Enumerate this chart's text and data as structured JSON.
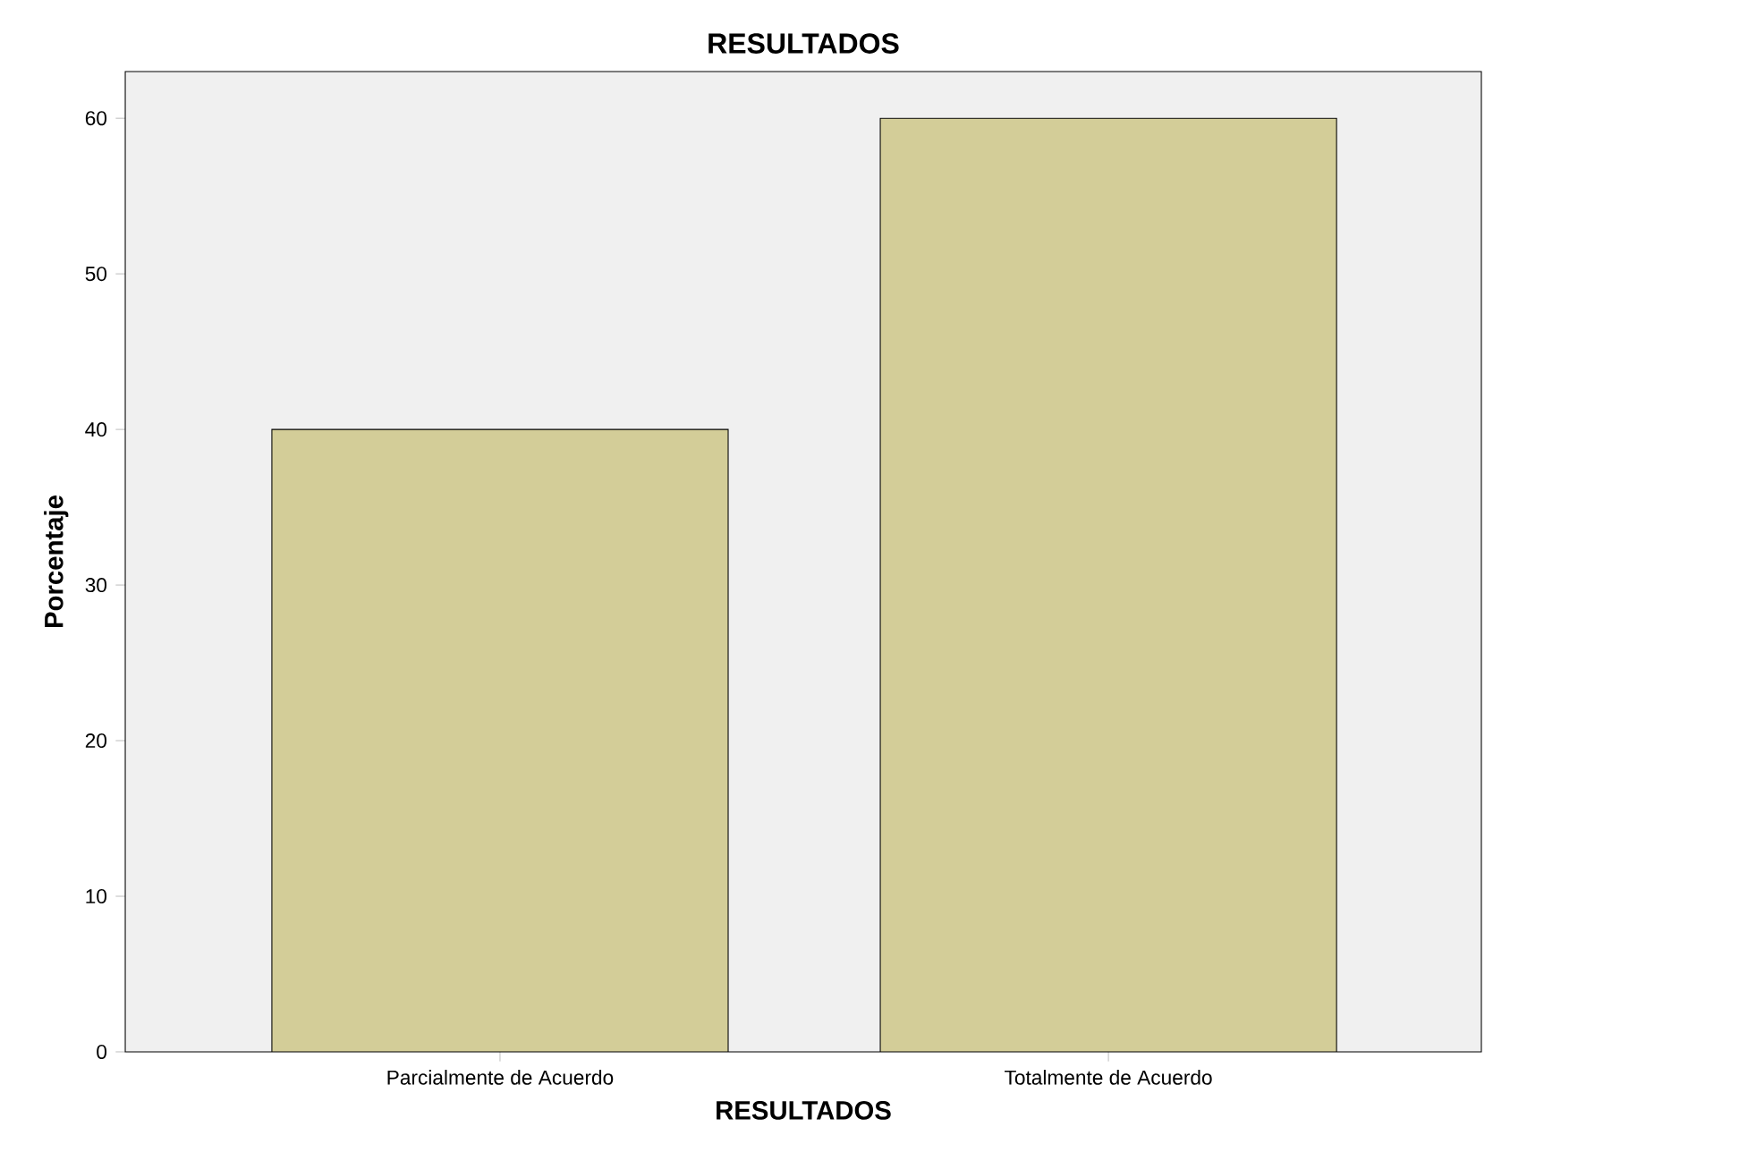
{
  "chart_data": {
    "type": "bar",
    "title": "RESULTADOS",
    "xlabel": "RESULTADOS",
    "ylabel": "Porcentaje",
    "categories": [
      "Parcialmente de Acuerdo",
      "Totalmente de Acuerdo"
    ],
    "values": [
      40,
      60
    ],
    "color": "#d3cd98",
    "ylim": [
      0,
      63
    ],
    "yticks": [
      0,
      10,
      20,
      30,
      40,
      50,
      60
    ],
    "grid": false
  }
}
